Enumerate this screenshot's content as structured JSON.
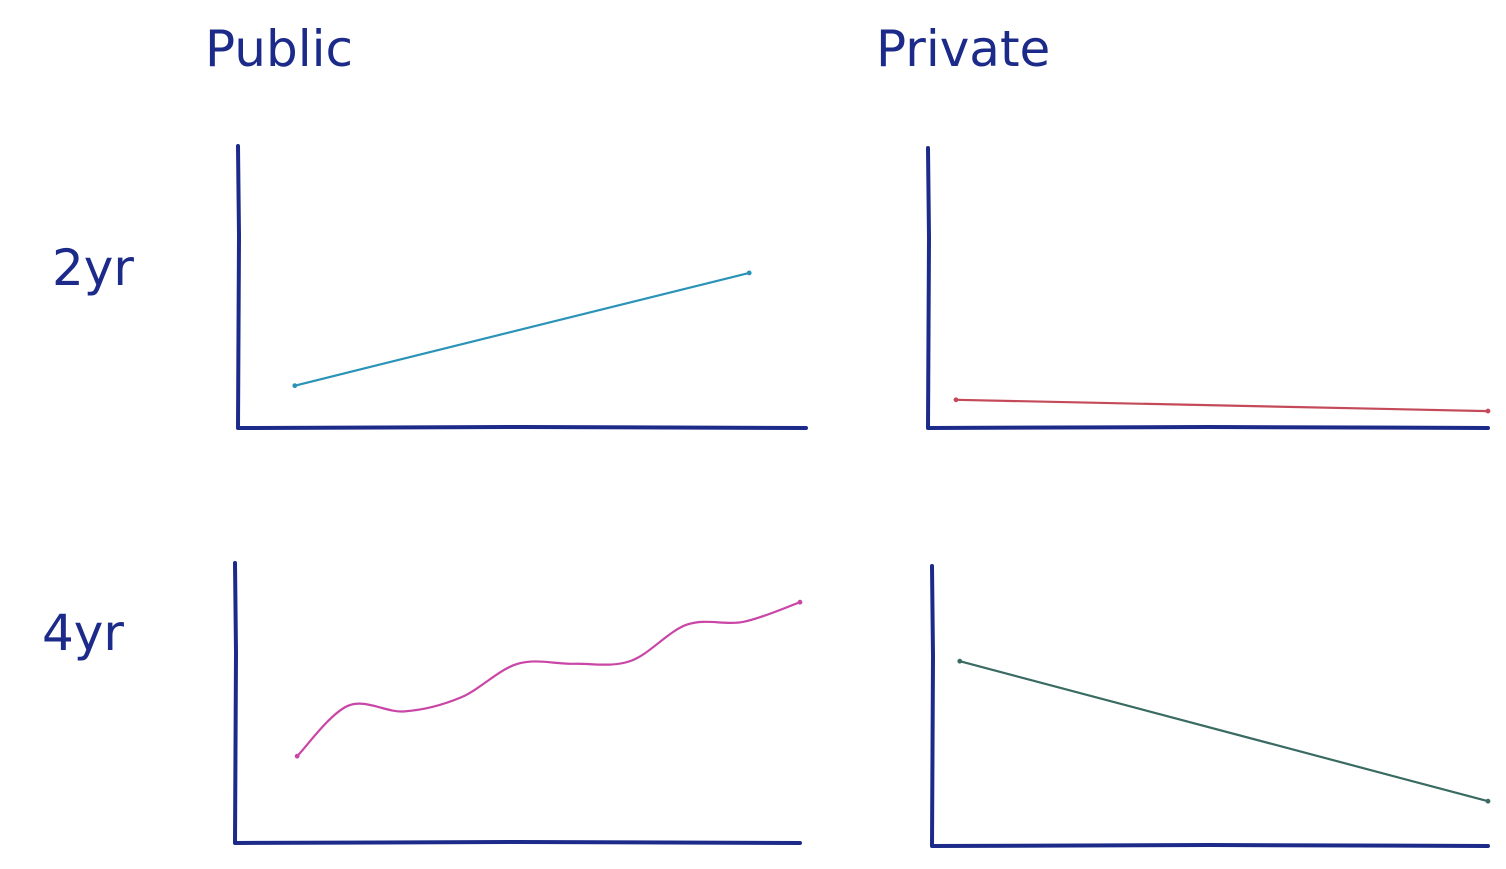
{
  "headers": {
    "columns": [
      "Public",
      "Private"
    ],
    "rows": [
      "2yr",
      "4yr"
    ]
  },
  "colors": {
    "ink": "#1c2a8a",
    "public_2yr": "#2a93b8",
    "private_2yr": "#c44a5a",
    "public_4yr": "#c945a6",
    "private_4yr": "#3a6b62"
  },
  "chart_data": [
    {
      "type": "line",
      "title": "",
      "column": "Public",
      "row": "2yr",
      "grid": false,
      "xlim": [
        0,
        10
      ],
      "ylim": [
        0,
        10
      ],
      "series": [
        {
          "color": "#2a93b8",
          "x": [
            1,
            9
          ],
          "y": [
            1.5,
            5.5
          ]
        }
      ]
    },
    {
      "type": "line",
      "title": "",
      "column": "Private",
      "row": "2yr",
      "grid": false,
      "xlim": [
        0,
        10
      ],
      "ylim": [
        0,
        10
      ],
      "series": [
        {
          "color": "#c44a5a",
          "x": [
            0.5,
            10
          ],
          "y": [
            1,
            0.6
          ]
        }
      ]
    },
    {
      "type": "line",
      "title": "",
      "column": "Public",
      "row": "4yr",
      "grid": false,
      "xlim": [
        0,
        10
      ],
      "ylim": [
        0,
        10
      ],
      "series": [
        {
          "color": "#c945a6",
          "x": [
            1.1,
            2,
            3,
            4,
            5,
            6,
            7,
            8,
            9,
            10
          ],
          "y": [
            3.1,
            4.9,
            4.7,
            5.2,
            6.4,
            6.4,
            6.5,
            7.8,
            7.9,
            8.6
          ]
        }
      ]
    },
    {
      "type": "line",
      "title": "",
      "column": "Private",
      "row": "4yr",
      "grid": false,
      "xlim": [
        0,
        10
      ],
      "ylim": [
        0,
        10
      ],
      "series": [
        {
          "color": "#3a6b62",
          "x": [
            0.5,
            10
          ],
          "y": [
            6.6,
            1.6
          ]
        }
      ]
    }
  ]
}
